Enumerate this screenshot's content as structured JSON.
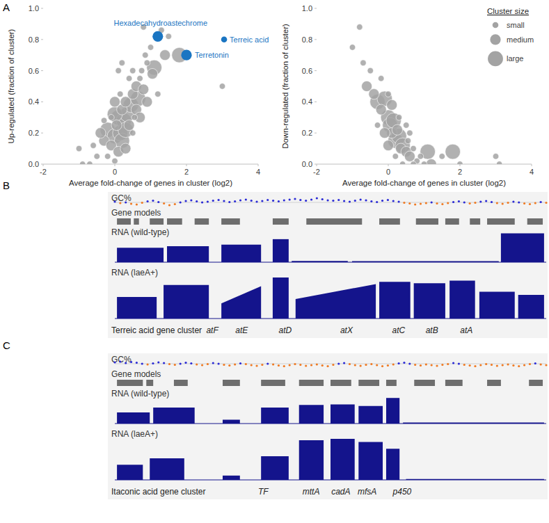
{
  "chart_data": [
    {
      "type": "scatter",
      "xlabel": "Average fold-change of genes in cluster (log2)",
      "ylabel": "Up-regulated (fraction of cluster)",
      "xlim": [
        -2,
        4
      ],
      "xticks": [
        -2,
        0,
        2,
        4
      ],
      "ylim": [
        0,
        1
      ],
      "yticks": [
        {
          "value": 0,
          "label": "0.0"
        },
        0.2,
        0.4,
        0.6,
        0.8,
        {
          "value": 1,
          "label": "1.0"
        }
      ],
      "color": "#a3a3a3",
      "x": [
        -1.0,
        -0.7,
        -0.9,
        -0.5,
        -0.3,
        -0.2,
        -0.1,
        0.0,
        0.05,
        0.1,
        0.15,
        0.2,
        0.25,
        0.3,
        0.35,
        0.4,
        0.45,
        0.5,
        0.55,
        0.6,
        0.65,
        0.7,
        0.75,
        0.8,
        0.85,
        0.9,
        1.0,
        1.05,
        1.1,
        1.8,
        1.5,
        1.3,
        0.8,
        3.0,
        -0.2,
        0.0,
        0.1,
        -0.1,
        -0.4,
        0.0,
        0.2,
        0.3,
        0.5,
        0.4,
        0.2,
        0.1,
        0.6,
        0.7,
        0.9,
        1.2,
        -0.6,
        -0.3,
        0.0,
        0.3,
        0.15,
        0.5,
        1.4
      ],
      "y": [
        0.1,
        0,
        0,
        0.05,
        0.15,
        0.22,
        0.12,
        0.18,
        0.25,
        0.3,
        0.2,
        0.35,
        0.28,
        0.4,
        0.32,
        0.25,
        0.38,
        0.45,
        0.3,
        0.5,
        0.42,
        0.55,
        0.6,
        0.48,
        0.7,
        0.65,
        0.75,
        0.58,
        0.62,
        0.7,
        0.82,
        0.86,
        0.88,
        0.5,
        0.05,
        0.02,
        0.08,
        0.3,
        0.2,
        0.4,
        0.15,
        0.1,
        0.2,
        0.55,
        0.65,
        0.6,
        0.35,
        0.3,
        0.4,
        0.45,
        0.12,
        0.28,
        0.32,
        0.22,
        0.45,
        0.6,
        0.7
      ],
      "size": [
        1,
        1,
        1,
        1,
        2,
        3,
        2,
        3,
        2,
        3,
        3,
        2,
        3,
        2,
        3,
        2,
        3,
        2,
        1,
        2,
        3,
        1,
        1,
        2,
        1,
        1,
        1,
        2,
        3,
        3,
        1,
        1,
        1,
        1,
        1,
        1,
        2,
        1,
        2,
        2,
        3,
        2,
        1,
        1,
        1,
        1,
        2,
        2,
        2,
        1,
        1,
        1,
        3,
        3,
        1,
        1,
        2
      ],
      "highlights": {
        "color": "#1a75c2",
        "labels": [
          "Hexadecahydroastechrome",
          "Terreic acid",
          "Terretonin"
        ],
        "x": [
          1.2,
          3.05,
          2.0
        ],
        "y": [
          0.82,
          0.8,
          0.7
        ],
        "size": [
          2,
          1,
          2
        ]
      }
    },
    {
      "type": "scatter",
      "xlabel": "Average fold-change of genes in cluster (log2)",
      "ylabel": "Down-regulated (fraction of cluster)",
      "xlim": [
        -2,
        4
      ],
      "xticks": [
        -2,
        0,
        2,
        4
      ],
      "ylim": [
        0,
        1
      ],
      "yticks": [
        {
          "value": 0,
          "label": "0.0"
        },
        0.2,
        0.4,
        0.6,
        0.8,
        {
          "value": 1,
          "label": "1.0"
        }
      ],
      "color": "#a3a3a3",
      "x": [
        -1.0,
        -0.8,
        -0.7,
        -0.6,
        -0.5,
        -0.4,
        -0.3,
        -0.2,
        -0.1,
        0.0,
        0.05,
        0.1,
        0.15,
        0.2,
        0.25,
        0.3,
        0.35,
        0.4,
        0.5,
        0.55,
        0.6,
        0.7,
        0.8,
        0.9,
        1.0,
        1.1,
        1.8,
        1.2,
        2.0,
        3.0,
        3.1,
        -0.2,
        0.0,
        0.1,
        0.3,
        0.5,
        -0.1,
        0.0,
        0.2,
        0.4,
        -0.3,
        0.6,
        0.7,
        1.5
      ],
      "y": [
        0.75,
        0.88,
        0.65,
        0.5,
        0.6,
        0.45,
        0.4,
        0.35,
        0.42,
        0.3,
        0.25,
        0.2,
        0.28,
        0.15,
        0.22,
        0.18,
        0.1,
        0.12,
        0.08,
        0.15,
        0.05,
        0.1,
        0.02,
        0.05,
        0,
        0.08,
        0.08,
        0,
        0,
        0.05,
        0,
        0.55,
        0.45,
        0.38,
        0.3,
        0.25,
        0.2,
        0.12,
        0.05,
        0,
        0.25,
        0.2,
        0,
        0.05
      ],
      "size": [
        1,
        1,
        1,
        2,
        1,
        2,
        3,
        2,
        3,
        3,
        3,
        2,
        3,
        3,
        2,
        3,
        2,
        3,
        2,
        1,
        2,
        1,
        1,
        1,
        1,
        3,
        3,
        2,
        1,
        1,
        1,
        1,
        1,
        2,
        1,
        1,
        2,
        2,
        1,
        1,
        1,
        1,
        1,
        1
      ],
      "legend": "upper right",
      "size_legend": {
        "title": "Cluster size",
        "labels": [
          "small",
          "medium",
          "large"
        ],
        "values": [
          1,
          2,
          3
        ]
      }
    }
  ],
  "panel_labels": [
    "A",
    "B",
    "C"
  ],
  "tracks": [
    {
      "title": "Terreic acid gene cluster",
      "xlim": [
        0,
        1000
      ],
      "gc": {
        "label": "GC%",
        "ylim": [
          0.3,
          0.7
        ],
        "midline": 0.5,
        "colors": [
          "#2b2bd6",
          "#f07a22"
        ],
        "values": [
          0.52,
          0.48,
          0.5,
          0.46,
          0.44,
          0.49,
          0.53,
          0.55,
          0.51,
          0.47,
          0.42,
          0.45,
          0.5,
          0.54,
          0.56,
          0.53,
          0.5,
          0.52,
          0.55,
          0.57,
          0.54,
          0.51,
          0.53,
          0.56,
          0.58,
          0.55,
          0.52,
          0.54,
          0.57,
          0.55,
          0.53,
          0.56,
          0.58,
          0.6,
          0.57,
          0.55,
          0.58,
          0.62,
          0.59,
          0.56,
          0.55,
          0.57,
          0.54,
          0.52,
          0.55,
          0.58,
          0.56,
          0.53,
          0.51,
          0.55,
          0.57,
          0.54,
          0.52,
          0.49,
          0.47,
          0.44,
          0.46,
          0.48,
          0.5,
          0.47,
          0.45,
          0.48,
          0.51,
          0.53,
          0.5,
          0.47,
          0.49,
          0.52,
          0.54,
          0.51,
          0.48,
          0.46,
          0.49,
          0.52,
          0.5,
          0.47,
          0.45,
          0.48,
          0.51,
          0.49
        ]
      },
      "genes": {
        "label": "Gene models",
        "color": "#6e6e6e",
        "starts": [
          5,
          44,
          81,
          121,
          185,
          247,
          366,
          444,
          613,
          698,
          766,
          823,
          863,
          956
        ],
        "ends": [
          37,
          56,
          113,
          156,
          218,
          290,
          403,
          573,
          661,
          750,
          798,
          847,
          927,
          992
        ]
      },
      "rna": [
        {
          "label": "RNA (wild-type)",
          "color": "#14148c",
          "ylim": [
            0,
            1
          ],
          "starts": [
            5,
            121,
            247,
            366,
            410,
            550,
            895
          ],
          "ends": [
            113,
            218,
            339,
            403,
            540,
            890,
            995
          ],
          "levels": [
            0.45,
            0.5,
            0.55,
            0.72,
            0.04,
            0.03,
            0.9
          ],
          "end_levels": [
            0.45,
            0.5,
            0.55,
            0.72,
            0.04,
            0.03,
            0.9
          ]
        },
        {
          "label": "RNA (laeA+)",
          "color": "#14148c",
          "ylim": [
            0,
            1
          ],
          "starts": [
            5,
            113,
            247,
            366,
            419,
            613,
            693,
            776,
            845,
            935
          ],
          "ends": [
            97,
            218,
            339,
            403,
            605,
            685,
            766,
            835,
            927,
            995
          ],
          "levels": [
            0.5,
            0.78,
            0.35,
            0.95,
            0.45,
            0.85,
            0.82,
            0.88,
            0.62,
            0.55
          ],
          "end_levels": [
            0.5,
            0.78,
            0.75,
            0.95,
            0.8,
            0.85,
            0.82,
            0.88,
            0.62,
            0.55
          ]
        }
      ],
      "gene_labels": {
        "labels": [
          "atF",
          "atE",
          "atD",
          "atX",
          "atC",
          "atB",
          "atA"
        ],
        "positions": [
          226,
          294,
          395,
          537,
          658,
          735,
          815
        ]
      }
    },
    {
      "title": "Itaconic acid gene cluster",
      "xlim": [
        0,
        1000
      ],
      "gc": {
        "label": "GC%",
        "ylim": [
          0.3,
          0.7
        ],
        "midline": 0.5,
        "colors": [
          "#2b2bd6",
          "#f07a22"
        ],
        "values": [
          0.54,
          0.56,
          0.52,
          0.55,
          0.53,
          0.5,
          0.48,
          0.51,
          0.54,
          0.52,
          0.49,
          0.47,
          0.5,
          0.53,
          0.51,
          0.48,
          0.46,
          0.49,
          0.52,
          0.5,
          0.47,
          0.45,
          0.48,
          0.51,
          0.49,
          0.46,
          0.44,
          0.47,
          0.5,
          0.48,
          0.45,
          0.43,
          0.46,
          0.49,
          0.47,
          0.44,
          0.46,
          0.48,
          0.45,
          0.43,
          0.47,
          0.5,
          0.52,
          0.49,
          0.46,
          0.44,
          0.47,
          0.49,
          0.46,
          0.43,
          0.45,
          0.48,
          0.51,
          0.53,
          0.5,
          0.47,
          0.45,
          0.48,
          0.46,
          0.44,
          0.47,
          0.49,
          0.52,
          0.5,
          0.47,
          0.45,
          0.43,
          0.46,
          0.49,
          0.47,
          0.44,
          0.46,
          0.48,
          0.45,
          0.43,
          0.46,
          0.49,
          0.51,
          0.48,
          0.46
        ]
      },
      "genes": {
        "label": "Gene models",
        "color": "#6e6e6e",
        "starts": [
          5,
          73,
          137,
          250,
          339,
          427,
          500,
          565,
          629,
          694,
          766,
          863,
          960
        ],
        "ends": [
          65,
          89,
          169,
          290,
          395,
          484,
          548,
          613,
          653,
          742,
          806,
          895,
          992
        ]
      },
      "rna": [
        {
          "label": "RNA (wild-type)",
          "color": "#14148c",
          "ylim": [
            0,
            1
          ],
          "starts": [
            5,
            89,
            250,
            339,
            427,
            500,
            565,
            629,
            668
          ],
          "ends": [
            81,
            185,
            290,
            403,
            484,
            556,
            621,
            660,
            995
          ],
          "levels": [
            0.35,
            0.5,
            0.12,
            0.5,
            0.58,
            0.6,
            0.55,
            0.8,
            0.03
          ],
          "end_levels": [
            0.35,
            0.5,
            0.12,
            0.5,
            0.58,
            0.6,
            0.55,
            0.8,
            0.03
          ]
        },
        {
          "label": "RNA (laeA+)",
          "color": "#14148c",
          "ylim": [
            0,
            1
          ],
          "starts": [
            5,
            81,
            250,
            339,
            427,
            500,
            565,
            629,
            675
          ],
          "ends": [
            65,
            161,
            290,
            403,
            484,
            556,
            621,
            660,
            995
          ],
          "levels": [
            0.35,
            0.5,
            0.1,
            0.55,
            0.92,
            0.95,
            0.88,
            0.72,
            0.02
          ],
          "end_levels": [
            0.35,
            0.5,
            0.1,
            0.55,
            0.92,
            0.95,
            0.88,
            0.72,
            0.02
          ]
        }
      ],
      "gene_labels": {
        "labels": [
          "TF",
          "mttA",
          "cadA",
          "mfsA",
          "p450"
        ],
        "positions": [
          344,
          455,
          524,
          585,
          666
        ]
      }
    }
  ]
}
